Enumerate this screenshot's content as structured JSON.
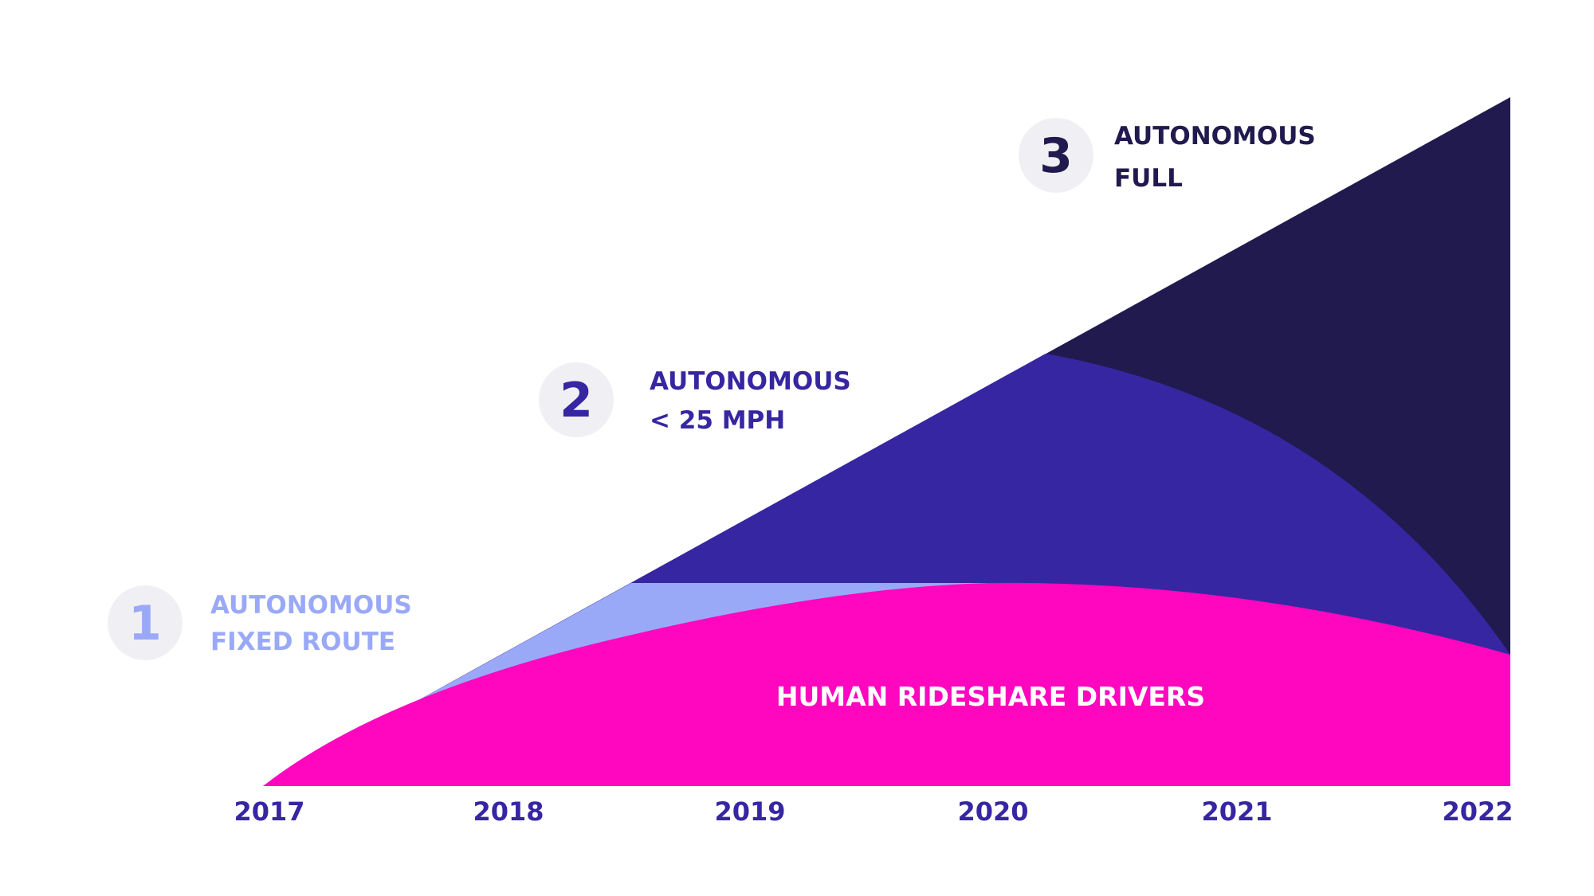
{
  "colors": {
    "background": "#ffffff",
    "fixed_route": "#9aa9f7",
    "under_25mph": "#3626a2",
    "full": "#211a4e",
    "human": "#ff06bf",
    "badge": "#f0f0f4",
    "year_text": "#3626a2",
    "human_label": "#ffffff"
  },
  "years": [
    "2017",
    "2018",
    "2019",
    "2020",
    "2021",
    "2022"
  ],
  "stages": [
    {
      "number": "1",
      "line1": "AUTONOMOUS",
      "line2": "FIXED ROUTE",
      "color": "#9aa9f7"
    },
    {
      "number": "2",
      "line1": "AUTONOMOUS",
      "line2": "< 25 MPH",
      "color": "#3626a2"
    },
    {
      "number": "3",
      "line1": "AUTONOMOUS",
      "line2": "FULL",
      "color": "#211a4e"
    }
  ],
  "human_label": "HUMAN RIDESHARE DRIVERS"
}
